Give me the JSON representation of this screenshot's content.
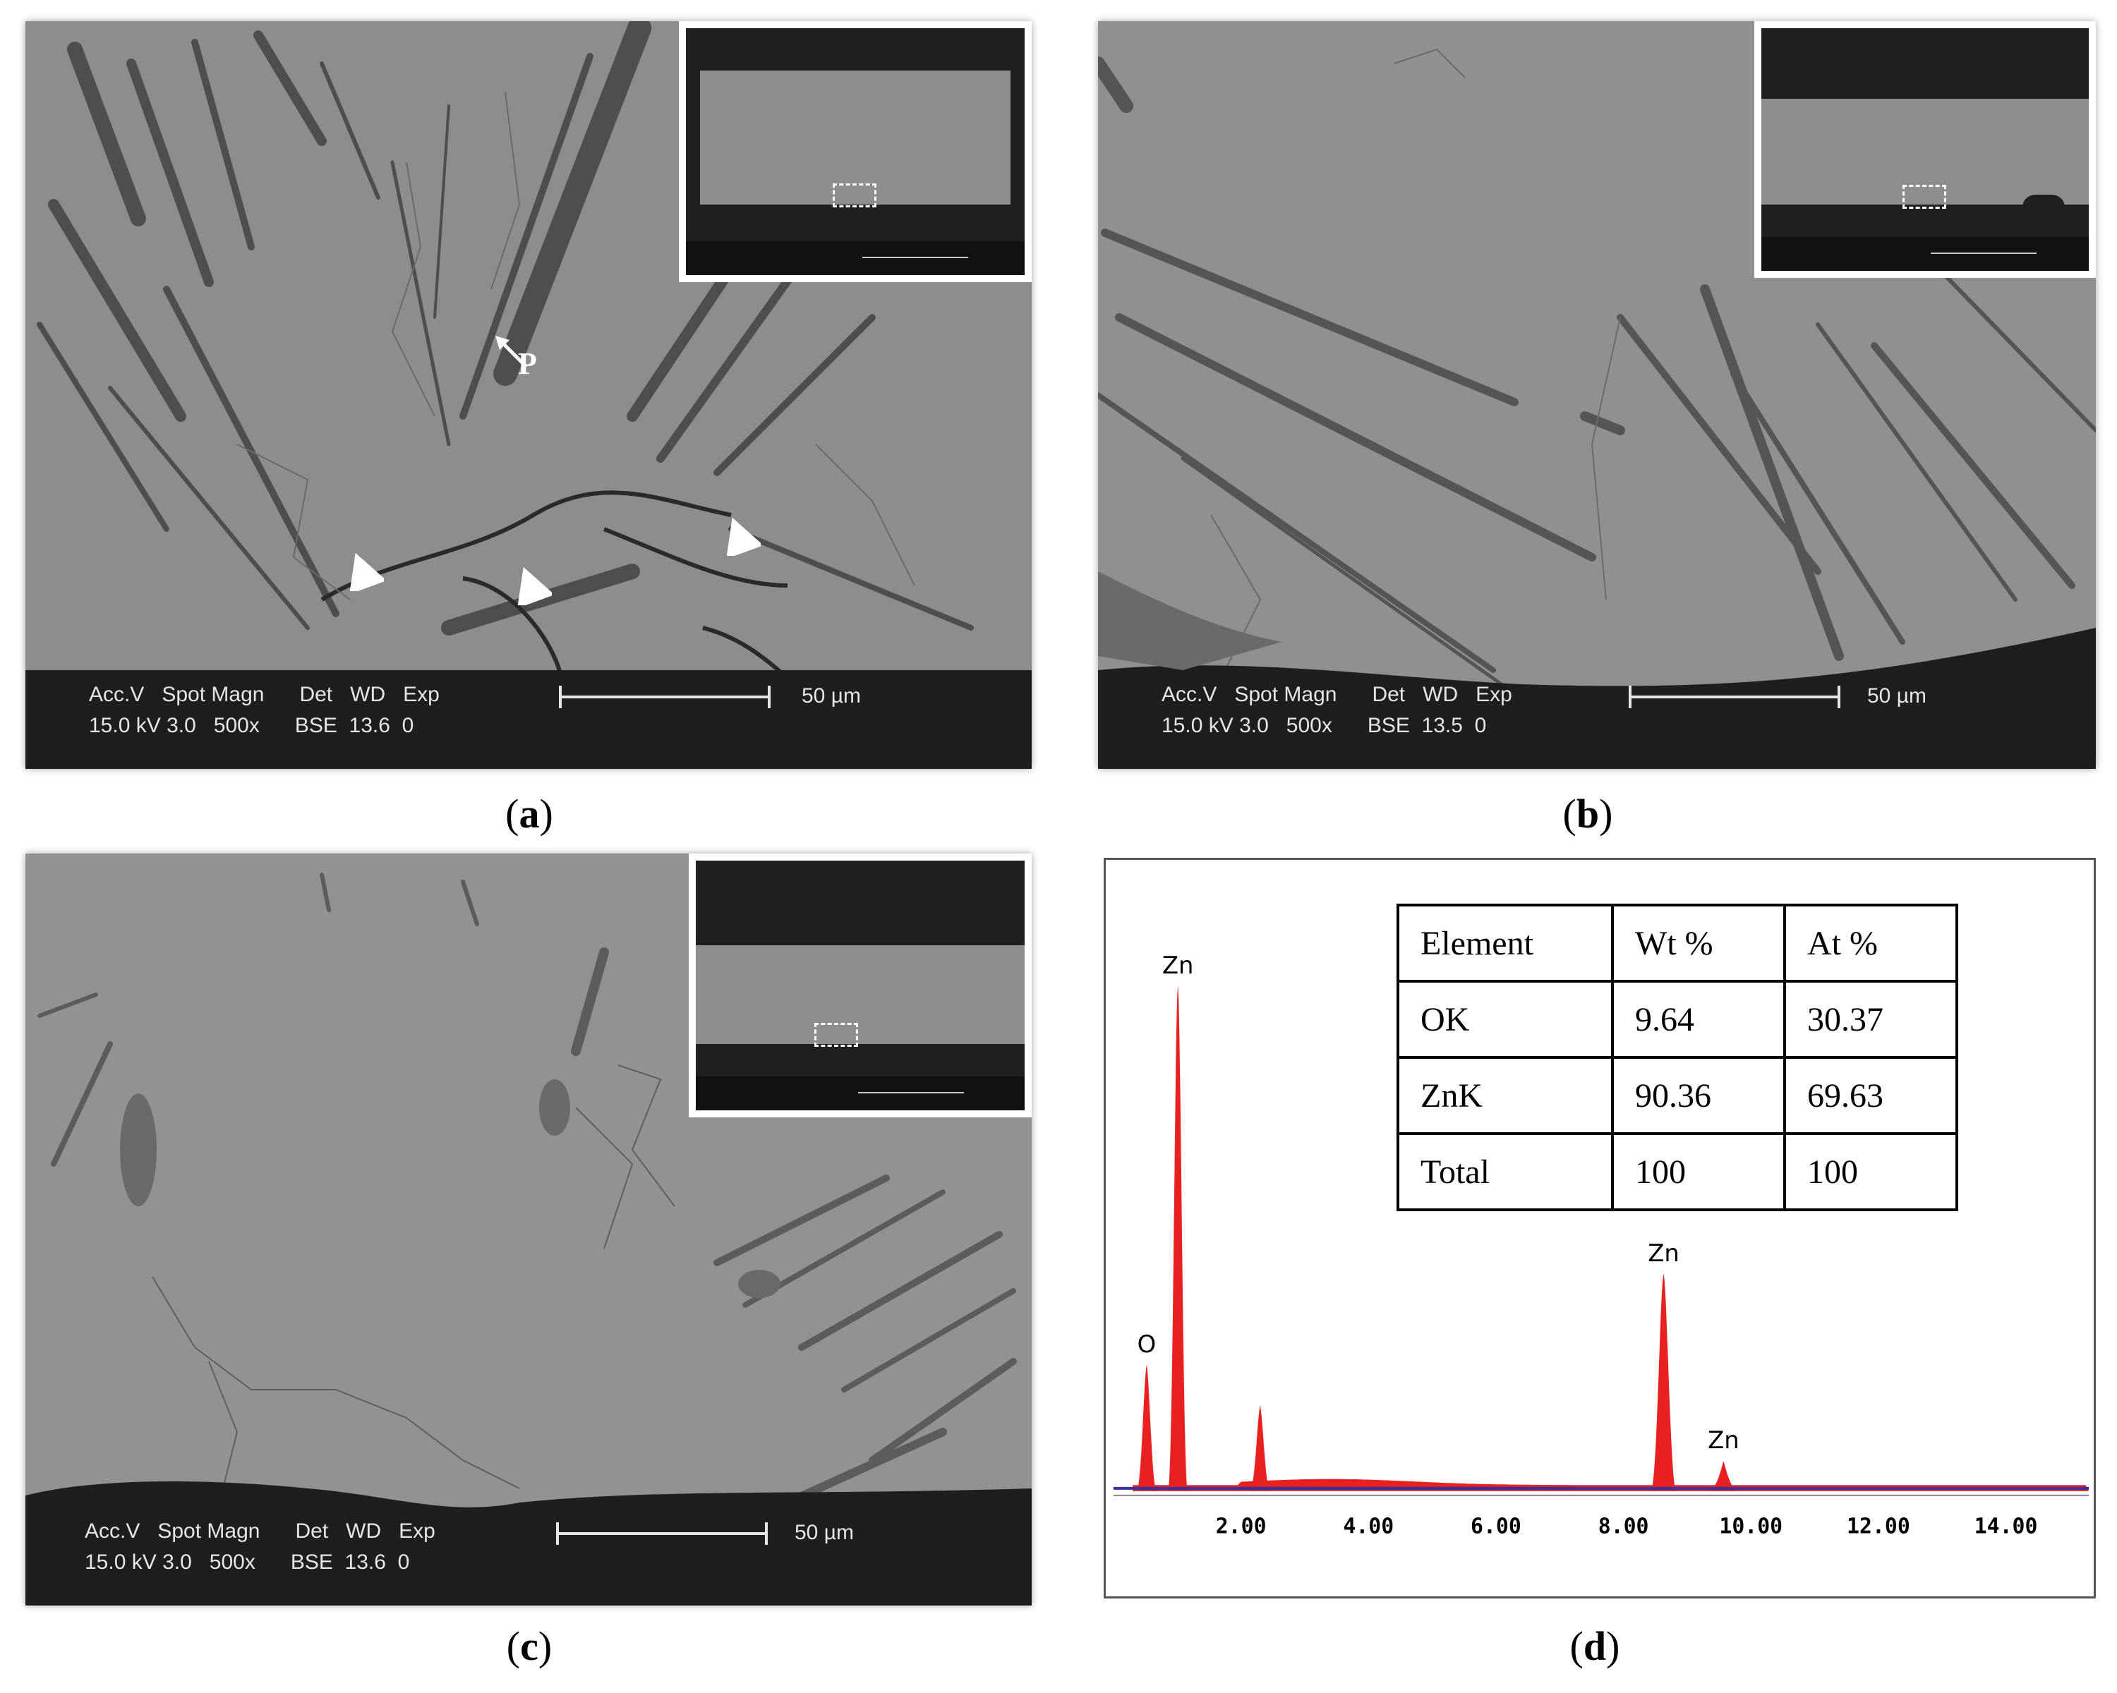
{
  "panels": [
    {
      "id": "a",
      "caption_letter": "a",
      "databar": {
        "line1": "Acc.V   Spot Magn      Det   WD   Exp",
        "line2": "15.0 kV 3.0   500x      BSE  13.6  0",
        "scale": "50 µm"
      },
      "marker_label": "P"
    },
    {
      "id": "b",
      "caption_letter": "b",
      "databar": {
        "line1": "Acc.V   Spot Magn      Det   WD   Exp",
        "line2": "15.0 kV 3.0   500x      BSE  13.5  0",
        "scale": "50 µm"
      }
    },
    {
      "id": "c",
      "caption_letter": "c",
      "databar": {
        "line1": "Acc.V   Spot Magn      Det   WD   Exp",
        "line2": "15.0 kV 3.0   500x      BSE  13.6  0",
        "scale": "50 µm"
      }
    }
  ],
  "eds": {
    "caption_letter": "d",
    "table": {
      "headers": [
        "Element",
        "Wt %",
        "At %"
      ],
      "rows": [
        [
          "OK",
          "9.64",
          "30.37"
        ],
        [
          "ZnK",
          "90.36",
          "69.63"
        ],
        [
          "Total",
          "100",
          "100"
        ]
      ]
    },
    "chart_data": {
      "type": "line",
      "x_ticks": [
        "2.00",
        "4.00",
        "6.00",
        "8.00",
        "10.00",
        "12.00",
        "14.00"
      ],
      "xlim": [
        0,
        15.3
      ],
      "peaks": [
        {
          "label": "O",
          "energy_kev": 0.52,
          "relative_height": 0.25
        },
        {
          "label": "Zn",
          "energy_kev": 1.01,
          "relative_height": 1.0
        },
        {
          "label": "",
          "energy_kev": 2.3,
          "relative_height": 0.17
        },
        {
          "label": "Zn",
          "energy_kev": 8.63,
          "relative_height": 0.43
        },
        {
          "label": "Zn",
          "energy_kev": 9.57,
          "relative_height": 0.06
        }
      ],
      "colors": {
        "spectrum": "#e8201f",
        "baseline": "#3b2f9c"
      }
    }
  }
}
